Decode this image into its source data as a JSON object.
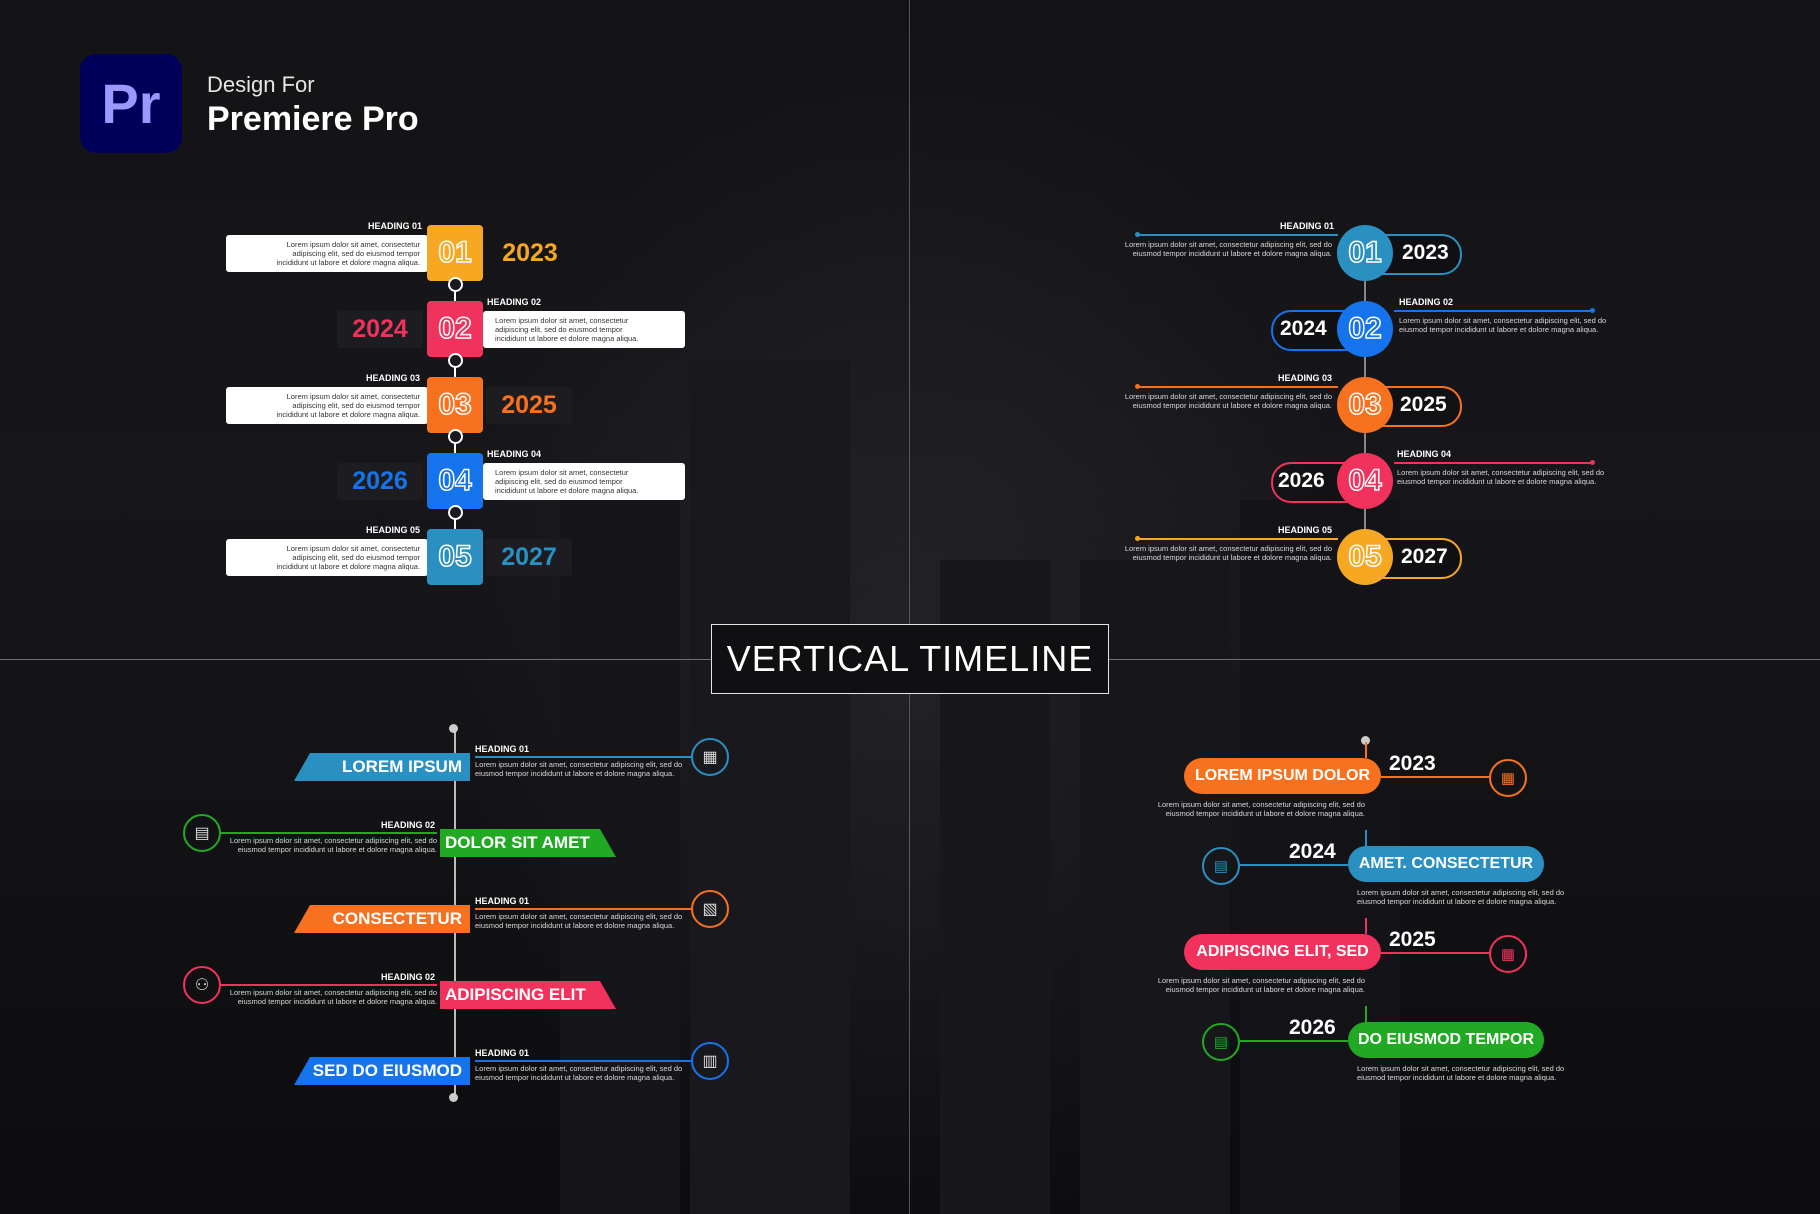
{
  "brand": {
    "logo_text": "Pr",
    "design_for": "Design For",
    "product": "Premiere Pro"
  },
  "title": "VERTICAL TIMELINE",
  "lorem": "Lorem ipsum dolor sit amet, consectetur adipiscing elit, sed do eiusmod tempor incididunt ut labore et dolore magna aliqua.",
  "colors": {
    "yellow": "#f7a823",
    "pink": "#f0325c",
    "orange": "#f7711e",
    "blue": "#1574ec",
    "teal": "#2a8fc1",
    "green": "#22a924"
  },
  "q1": {
    "items": [
      {
        "heading": "HEADING 01",
        "num": "01",
        "year": "2023",
        "color": "#f7a823"
      },
      {
        "heading": "HEADING 02",
        "num": "02",
        "year": "2024",
        "color": "#f0325c"
      },
      {
        "heading": "HEADING 03",
        "num": "03",
        "year": "2025",
        "color": "#f7711e"
      },
      {
        "heading": "HEADING 04",
        "num": "04",
        "year": "2026",
        "color": "#1574ec"
      },
      {
        "heading": "HEADING 05",
        "num": "05",
        "year": "2027",
        "color": "#2a8fc1"
      }
    ]
  },
  "q2": {
    "items": [
      {
        "heading": "HEADING 01",
        "num": "01",
        "year": "2023",
        "color": "#2a8fc1"
      },
      {
        "heading": "HEADING 02",
        "num": "02",
        "year": "2024",
        "color": "#1574ec"
      },
      {
        "heading": "HEADING 03",
        "num": "03",
        "year": "2025",
        "color": "#f7711e"
      },
      {
        "heading": "HEADING 04",
        "num": "04",
        "year": "2026",
        "color": "#f0325c"
      },
      {
        "heading": "HEADING 05",
        "num": "05",
        "year": "2027",
        "color": "#f7a823"
      }
    ]
  },
  "q3": {
    "items": [
      {
        "label": "LOREM IPSUM",
        "heading": "HEADING 01",
        "color": "#2a8fc1",
        "icon": "presentation-icon"
      },
      {
        "label": "DOLOR SIT AMET",
        "heading": "HEADING 02",
        "color": "#22a924",
        "icon": "document-icon"
      },
      {
        "label": "CONSECTETUR",
        "heading": "HEADING 01",
        "color": "#f7711e",
        "icon": "checklist-icon"
      },
      {
        "label": "ADIPISCING ELIT",
        "heading": "HEADING 02",
        "color": "#f0325c",
        "icon": "network-icon"
      },
      {
        "label": "SED DO EIUSMOD",
        "heading": "HEADING 01",
        "color": "#1574ec",
        "icon": "bar-chart-icon"
      }
    ]
  },
  "q4": {
    "items": [
      {
        "label": "LOREM IPSUM DOLOR",
        "year": "2023",
        "color": "#f7711e",
        "icon": "presentation-icon"
      },
      {
        "label": "AMET. CONSECTETUR",
        "year": "2024",
        "color": "#2a8fc1",
        "icon": "document-icon"
      },
      {
        "label": "ADIPISCING ELIT, SED",
        "year": "2025",
        "color": "#f0325c",
        "icon": "presentation-icon"
      },
      {
        "label": "DO EIUSMOD TEMPOR",
        "year": "2026",
        "color": "#22a924",
        "icon": "document-icon"
      }
    ]
  }
}
